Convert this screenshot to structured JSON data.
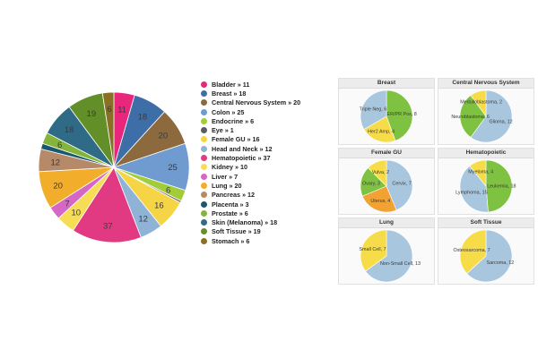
{
  "chart_data": [
    {
      "type": "pie",
      "title": "",
      "categories": [
        "Bladder",
        "Breast",
        "Central Nervous System",
        "Colon",
        "Endocrine",
        "Eye",
        "Female GU",
        "Head and Neck",
        "Hematopoietic",
        "Kidney",
        "Liver",
        "Lung",
        "Pancreas",
        "Placenta",
        "Prostate",
        "Skin (Melanoma)",
        "Soft Tissue",
        "Stomach"
      ],
      "values": [
        11,
        18,
        20,
        25,
        6,
        1,
        16,
        12,
        37,
        10,
        7,
        20,
        12,
        3,
        6,
        18,
        19,
        6
      ],
      "colors": [
        "#e8267c",
        "#3d6ea8",
        "#8c6a3e",
        "#6f9bd1",
        "#a2cc3a",
        "#5c5c5c",
        "#f5d445",
        "#8fb3d6",
        "#e23a82",
        "#f7dd55",
        "#d667c4",
        "#f2ad2a",
        "#b68a68",
        "#1a5870",
        "#84b53a",
        "#2f6b86",
        "#638f28",
        "#8a7024"
      ],
      "slice_labels": [
        "11",
        "18",
        "20",
        "25",
        "6",
        "",
        "16",
        "12",
        "37",
        "10",
        "7",
        "20",
        "12",
        "",
        "6",
        "18",
        "19",
        "6"
      ],
      "legend_labels": [
        "Bladder » 11",
        "Breast » 18",
        "Central Nervous System » 20",
        "Colon » 25",
        "Endocrine » 6",
        "Eye » 1",
        "Female GU » 16",
        "Head and Neck » 12",
        "Hematopoietic » 37",
        "Kidney » 10",
        "Liver » 7",
        "Lung » 20",
        "Pancreas » 12",
        "Placenta » 3",
        "Prostate » 6",
        "Skin (Melanoma) » 18",
        "Soft Tissue » 19",
        "Stomach » 6"
      ],
      "legend_position": "right"
    },
    {
      "type": "pie",
      "title": "Breast",
      "categories": [
        "ER/PR Pos",
        "Her2 Amp",
        "Triple Neg"
      ],
      "values": [
        8,
        4,
        6
      ],
      "labels": [
        "ER/PR Pos, 8",
        "Her2 Amp, 4",
        "Triple Neg, 6"
      ],
      "colors": [
        "#7fc241",
        "#f7dc4a",
        "#a9c6df"
      ]
    },
    {
      "type": "pie",
      "title": "Central Nervous System",
      "categories": [
        "Glioma",
        "Neuroblastoma",
        "Medulloblastoma"
      ],
      "values": [
        12,
        6,
        2
      ],
      "labels": [
        "Glioma, 12",
        "Neuroblastoma, 6",
        "Medulloblastoma, 2"
      ],
      "colors": [
        "#a9c6df",
        "#7fc241",
        "#f7dc4a"
      ]
    },
    {
      "type": "pie",
      "title": "Female GU",
      "categories": [
        "Cervix",
        "Uterus",
        "Ovary",
        "Vulva"
      ],
      "values": [
        7,
        4,
        3,
        2
      ],
      "labels": [
        "Cervix, 7",
        "Uterus, 4",
        "Ovary, 3",
        "Vulva, 2"
      ],
      "colors": [
        "#a9c6df",
        "#f2a233",
        "#7fc241",
        "#f7dc4a"
      ]
    },
    {
      "type": "pie",
      "title": "Hematopoietic",
      "categories": [
        "Leukemia",
        "Lymphoma",
        "Myeloma"
      ],
      "values": [
        18,
        15,
        4
      ],
      "labels": [
        "Leukemia, 18",
        "Lymphoma, 15",
        "Myeloma, 4"
      ],
      "colors": [
        "#7fc241",
        "#a9c6df",
        "#f7dc4a"
      ]
    },
    {
      "type": "pie",
      "title": "Lung",
      "categories": [
        "Non-Small Cell",
        "Small Cell"
      ],
      "values": [
        13,
        7
      ],
      "labels": [
        "Non-Small Cell, 13",
        "Small Cell, 7"
      ],
      "colors": [
        "#a9c6df",
        "#f7dc4a"
      ]
    },
    {
      "type": "pie",
      "title": "Soft Tissue",
      "categories": [
        "Sarcoma",
        "Osteosarcoma"
      ],
      "values": [
        12,
        7
      ],
      "labels": [
        "Sarcoma, 12",
        "Osteosarcoma, 7"
      ],
      "colors": [
        "#a9c6df",
        "#f7dc4a"
      ]
    }
  ]
}
